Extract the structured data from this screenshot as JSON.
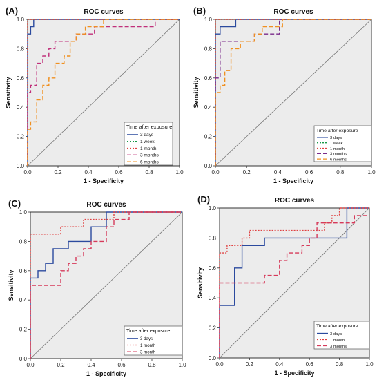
{
  "chart_data": [
    {
      "type": "line",
      "panel_label": "(A)",
      "title": "ROC curves",
      "xlabel": "1 - Specificity",
      "ylabel": "Sensitivity",
      "xlim": [
        0,
        1
      ],
      "ylim": [
        0,
        1
      ],
      "xticks": [
        "0.0",
        "0.2",
        "0.4",
        "0.6",
        "0.8",
        "1.0"
      ],
      "yticks": [
        "0.0",
        "0.2",
        "0.4",
        "0.6",
        "0.8",
        "1.0"
      ],
      "legend_title": "Time after exposure",
      "legend_position": "bottom-right",
      "series": [
        {
          "name": "3 days",
          "color": "#2b4a9e",
          "dash": "solid",
          "x": [
            0,
            0,
            0.02,
            0.02,
            0.04,
            0.04,
            1
          ],
          "y": [
            0,
            0.9,
            0.9,
            0.95,
            0.95,
            1,
            1
          ]
        },
        {
          "name": "1 week",
          "color": "#1a9a4a",
          "dash": "dotted",
          "x": [
            0,
            0,
            1
          ],
          "y": [
            0,
            1,
            1
          ]
        },
        {
          "name": "1 month",
          "color": "#e04040",
          "dash": "dotted",
          "x": [
            0,
            0,
            1
          ],
          "y": [
            0,
            1,
            1
          ]
        },
        {
          "name": "3 months",
          "color": "#c0307a",
          "dash": "dashed",
          "x": [
            0,
            0,
            0.02,
            0.02,
            0.06,
            0.06,
            0.1,
            0.1,
            0.14,
            0.14,
            0.18,
            0.18,
            0.22,
            0.22,
            0.32,
            0.32,
            0.44,
            0.44,
            0.84,
            0.84,
            1
          ],
          "y": [
            0,
            0.5,
            0.5,
            0.55,
            0.55,
            0.7,
            0.7,
            0.75,
            0.75,
            0.8,
            0.8,
            0.85,
            0.85,
            0.85,
            0.85,
            0.9,
            0.9,
            0.95,
            0.95,
            1,
            1
          ]
        },
        {
          "name": "6 months",
          "color": "#f09020",
          "dash": "dashed",
          "x": [
            0,
            0,
            0.02,
            0.02,
            0.06,
            0.06,
            0.1,
            0.1,
            0.14,
            0.14,
            0.18,
            0.18,
            0.24,
            0.24,
            0.28,
            0.28,
            0.32,
            0.32,
            0.38,
            0.38,
            0.5,
            0.5,
            1
          ],
          "y": [
            0,
            0.25,
            0.25,
            0.3,
            0.3,
            0.45,
            0.45,
            0.55,
            0.55,
            0.6,
            0.6,
            0.7,
            0.7,
            0.75,
            0.75,
            0.85,
            0.85,
            0.9,
            0.9,
            0.95,
            0.95,
            1,
            1
          ]
        }
      ]
    },
    {
      "type": "line",
      "panel_label": "(B)",
      "title": "ROC curves",
      "xlabel": "1 - Specificity",
      "ylabel": "Sensitivity",
      "xlim": [
        0,
        1
      ],
      "ylim": [
        0,
        1
      ],
      "xticks": [
        "0.0",
        "0.2",
        "0.4",
        "0.6",
        "0.8",
        "1.0"
      ],
      "yticks": [
        "0.0",
        "0.2",
        "0.4",
        "0.6",
        "0.8",
        "1.0"
      ],
      "legend_title": "Time after exposure",
      "legend_position": "bottom-right",
      "series": [
        {
          "name": "3 days",
          "color": "#2b4a9e",
          "dash": "solid",
          "x": [
            0,
            0,
            0.03,
            0.03,
            0.13,
            0.13,
            1
          ],
          "y": [
            0,
            0.9,
            0.9,
            0.95,
            0.95,
            1,
            1
          ]
        },
        {
          "name": "1 week",
          "color": "#1a9a4a",
          "dash": "dotted",
          "x": [
            0,
            0,
            1
          ],
          "y": [
            0,
            1,
            1
          ]
        },
        {
          "name": "1 month",
          "color": "#e04040",
          "dash": "dotted",
          "x": [
            0,
            0,
            1
          ],
          "y": [
            0,
            1,
            1
          ]
        },
        {
          "name": "3 months",
          "color": "#7a2a8a",
          "dash": "dashed",
          "x": [
            0,
            0,
            0.03,
            0.03,
            0.13,
            0.13,
            0.2,
            0.2,
            0.25,
            0.25,
            0.33,
            0.33,
            0.41,
            0.41,
            1
          ],
          "y": [
            0,
            0.6,
            0.6,
            0.85,
            0.85,
            0.85,
            0.85,
            0.85,
            0.85,
            0.9,
            0.9,
            0.9,
            0.9,
            1,
            1
          ]
        },
        {
          "name": "6 months",
          "color": "#f09020",
          "dash": "dashed",
          "x": [
            0,
            0,
            0.03,
            0.03,
            0.06,
            0.06,
            0.1,
            0.1,
            0.16,
            0.16,
            0.25,
            0.25,
            0.3,
            0.3,
            0.43,
            0.43,
            1
          ],
          "y": [
            0,
            0.5,
            0.5,
            0.55,
            0.55,
            0.65,
            0.65,
            0.8,
            0.8,
            0.85,
            0.85,
            0.9,
            0.9,
            0.95,
            0.95,
            1,
            1
          ]
        }
      ]
    },
    {
      "type": "line",
      "panel_label": "(C)",
      "title": "ROC curves",
      "xlabel": "1 - Specificity",
      "ylabel": "Sensitivity",
      "xlim": [
        0,
        1
      ],
      "ylim": [
        0,
        1
      ],
      "xticks": [
        "0.0",
        "0.2",
        "0.4",
        "0.6",
        "0.8",
        "1.0"
      ],
      "yticks": [
        "0.0",
        "0.2",
        "0.4",
        "0.6",
        "0.8",
        "1.0"
      ],
      "legend_title": "Time after exposure",
      "legend_position": "bottom-right",
      "series": [
        {
          "name": "3 days",
          "color": "#2b4a9e",
          "dash": "solid",
          "x": [
            0,
            0,
            0.05,
            0.05,
            0.1,
            0.1,
            0.15,
            0.15,
            0.25,
            0.25,
            0.4,
            0.4,
            0.5,
            0.5,
            1
          ],
          "y": [
            0,
            0.55,
            0.55,
            0.6,
            0.6,
            0.65,
            0.65,
            0.75,
            0.75,
            0.8,
            0.8,
            0.9,
            0.9,
            1,
            1
          ]
        },
        {
          "name": "1 month",
          "color": "#e04040",
          "dash": "dotted",
          "x": [
            0,
            0,
            0.2,
            0.2,
            0.25,
            0.25,
            0.35,
            0.35,
            0.45,
            0.45,
            0.55,
            0.55,
            1
          ],
          "y": [
            0,
            0.85,
            0.85,
            0.9,
            0.9,
            0.9,
            0.9,
            0.95,
            0.95,
            0.95,
            0.95,
            1,
            1
          ]
        },
        {
          "name": "3 month",
          "color": "#d63a5a",
          "dash": "dashed",
          "x": [
            0,
            0,
            0.2,
            0.2,
            0.25,
            0.25,
            0.3,
            0.3,
            0.35,
            0.35,
            0.4,
            0.4,
            0.5,
            0.5,
            0.55,
            0.55,
            0.65,
            0.65,
            1
          ],
          "y": [
            0,
            0.5,
            0.5,
            0.6,
            0.6,
            0.65,
            0.65,
            0.7,
            0.7,
            0.75,
            0.75,
            0.8,
            0.8,
            0.9,
            0.9,
            0.95,
            0.95,
            1,
            1
          ]
        }
      ]
    },
    {
      "type": "line",
      "panel_label": "(D)",
      "title": "ROC curves",
      "xlabel": "1 - Specificity",
      "ylabel": "Sensitivity",
      "xlim": [
        0,
        1
      ],
      "ylim": [
        0,
        1
      ],
      "xticks": [
        "0.0",
        "0.2",
        "0.4",
        "0.6",
        "0.8",
        "1.0"
      ],
      "yticks": [
        "0.0",
        "0.2",
        "0.4",
        "0.6",
        "0.8",
        "1.0"
      ],
      "legend_title": "Time after exposure",
      "legend_position": "bottom-right",
      "series": [
        {
          "name": "3 days",
          "color": "#2b4a9e",
          "dash": "solid",
          "x": [
            0,
            0,
            0.1,
            0.1,
            0.15,
            0.15,
            0.3,
            0.3,
            0.85,
            0.85,
            1
          ],
          "y": [
            0,
            0.35,
            0.35,
            0.6,
            0.6,
            0.75,
            0.75,
            0.8,
            0.8,
            1,
            1
          ]
        },
        {
          "name": "1 month",
          "color": "#e04040",
          "dash": "dotted",
          "x": [
            0,
            0,
            0.05,
            0.05,
            0.1,
            0.1,
            0.15,
            0.15,
            0.2,
            0.2,
            0.7,
            0.7,
            0.75,
            0.75,
            0.8,
            0.8,
            1
          ],
          "y": [
            0,
            0.7,
            0.7,
            0.75,
            0.75,
            0.75,
            0.75,
            0.8,
            0.8,
            0.85,
            0.85,
            0.9,
            0.9,
            0.95,
            0.95,
            1,
            1
          ]
        },
        {
          "name": "3 months",
          "color": "#d63a5a",
          "dash": "dashed",
          "x": [
            0,
            0,
            0.2,
            0.2,
            0.3,
            0.3,
            0.4,
            0.4,
            0.45,
            0.45,
            0.55,
            0.55,
            0.6,
            0.6,
            0.65,
            0.65,
            0.9,
            0.9,
            1
          ],
          "y": [
            0,
            0.5,
            0.5,
            0.5,
            0.5,
            0.55,
            0.55,
            0.65,
            0.65,
            0.7,
            0.7,
            0.75,
            0.75,
            0.8,
            0.8,
            0.9,
            0.9,
            0.95,
            0.95
          ]
        }
      ]
    }
  ]
}
